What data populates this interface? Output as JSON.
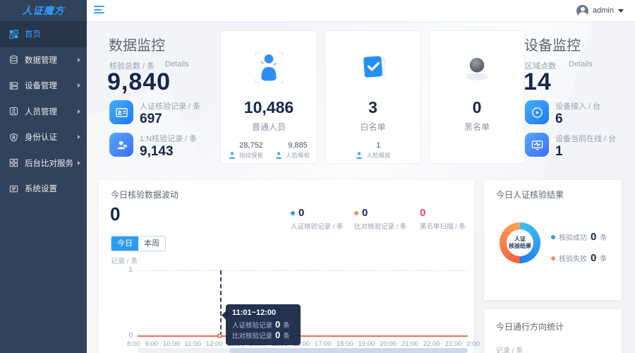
{
  "topbar": {
    "user_name": "admin"
  },
  "sidebar": {
    "logo": "人证魔方",
    "items": [
      {
        "label": "首页",
        "icon": "home-icon",
        "active": true,
        "has_arrow": false
      },
      {
        "label": "数据管理",
        "icon": "database-icon",
        "active": false,
        "has_arrow": true
      },
      {
        "label": "设备管理",
        "icon": "device-icon",
        "active": false,
        "has_arrow": true
      },
      {
        "label": "人员管理",
        "icon": "people-icon",
        "active": false,
        "has_arrow": true
      },
      {
        "label": "身份认证",
        "icon": "identity-shield-icon",
        "active": false,
        "has_arrow": true
      },
      {
        "label": "后台比对服务",
        "icon": "compare-grid-icon",
        "active": false,
        "has_arrow": true
      },
      {
        "label": "系统设置",
        "icon": "settings-icon",
        "active": false,
        "has_arrow": false
      }
    ]
  },
  "data_monitor": {
    "title": "数据监控",
    "total_label": "核验总数 / 条",
    "details_label": "Details",
    "total_value": "9,840",
    "rows": [
      {
        "label": "人证核验记录 / 条",
        "value": "697",
        "icon": "id-card-icon"
      },
      {
        "label": "1:N核验记录 / 条",
        "value": "9,143",
        "icon": "person-badge-icon"
      }
    ]
  },
  "person_cards": [
    {
      "value": "10,486",
      "label": "普通人员",
      "icon": "person-3d-icon",
      "subs": [
        {
          "value": "28,752",
          "label": "指纹模板"
        },
        {
          "value": "9,885",
          "label": "人脸模板"
        }
      ]
    },
    {
      "value": "3",
      "label": "白名单",
      "icon": "whitelist-cube-icon",
      "subs": [
        {
          "value": "1",
          "label": "人脸模板"
        }
      ]
    },
    {
      "value": "0",
      "label": "黑名单",
      "icon": "blacklist-sphere-icon",
      "subs": []
    }
  ],
  "device_monitor": {
    "title": "设备监控",
    "area_label": "区域点数",
    "details_label": "Details",
    "area_value": "14",
    "rows": [
      {
        "label": "设备接入 / 台",
        "value": "6",
        "icon": "play-circle-icon"
      },
      {
        "label": "设备当前在线 / 台",
        "value": "1",
        "icon": "monitor-pulse-icon"
      }
    ]
  },
  "fluctuation": {
    "title": "今日核验数据波动",
    "big_value": "0",
    "legend": [
      {
        "value": "0",
        "label": "人证核验记录 / 条",
        "color": "#2d9cf0"
      },
      {
        "value": "0",
        "label": "比对核验记录 / 条",
        "color": "#ff8a50"
      },
      {
        "value": "0",
        "label": "黑名单扫描 / 条",
        "color": "#f0445f"
      }
    ],
    "tabs": {
      "today": "今日",
      "week": "本周"
    },
    "active_tab": "今日",
    "y_axis_label": "记录 / 条",
    "y_tick_top": "1",
    "y_tick_bottom": "0",
    "tooltip": {
      "title": "11:01~12:00",
      "rows": [
        {
          "label": "人证核验记录",
          "value": "0",
          "unit": "条"
        },
        {
          "label": "比对核验记录",
          "value": "0",
          "unit": "条"
        }
      ]
    },
    "chart_data": {
      "type": "line",
      "x": [
        "8:00",
        "9:00",
        "10:00",
        "11:00",
        "12:00",
        "13:00",
        "14:00",
        "15:00",
        "16:00",
        "17:00",
        "18:00",
        "19:00",
        "20:00",
        "21:00",
        "22:00",
        "23:00",
        "0:00"
      ],
      "series": [
        {
          "name": "人证核验记录",
          "color": "#2d9cf0",
          "values": [
            0,
            0,
            0,
            0,
            0,
            0,
            0,
            0,
            0,
            0,
            0,
            0,
            0,
            0,
            0,
            0,
            0
          ]
        },
        {
          "name": "比对核验记录",
          "color": "#f47052",
          "values": [
            0,
            0,
            0,
            0,
            0,
            0,
            0,
            0,
            0,
            0,
            0,
            0,
            0,
            0,
            0,
            0,
            0
          ]
        }
      ],
      "ylim": [
        0,
        1
      ],
      "ylabel": "记录 / 条",
      "grid": "dashed-top",
      "highlight_x": "12:00"
    }
  },
  "verify_result": {
    "title": "今日人证核验结果",
    "donut_line1": "人证",
    "donut_line2": "核验结果",
    "legend": [
      {
        "label": "核验成功",
        "value": "0",
        "unit": "条",
        "color": "#2d9cf0"
      },
      {
        "label": "核验失败",
        "value": "0",
        "unit": "条",
        "color": "#ff8a50"
      }
    ],
    "chart_data": {
      "type": "pie",
      "categories": [
        "核验成功",
        "核验失败"
      ],
      "values": [
        0,
        0
      ],
      "colors": [
        "#1f7ff0",
        "#f55f3e"
      ]
    }
  },
  "direction_stats": {
    "title": "今日通行方向统计",
    "y_axis_label": "记录 / 条"
  },
  "colors": {
    "primary_blue": "#2d9cf0",
    "accent_orange": "#ff8a50",
    "alert_red": "#f0445f",
    "navy_text": "#16284c",
    "sidebar_bg": "#31435a",
    "active_link": "#3aa1ff",
    "line_orange": "#f47052"
  }
}
